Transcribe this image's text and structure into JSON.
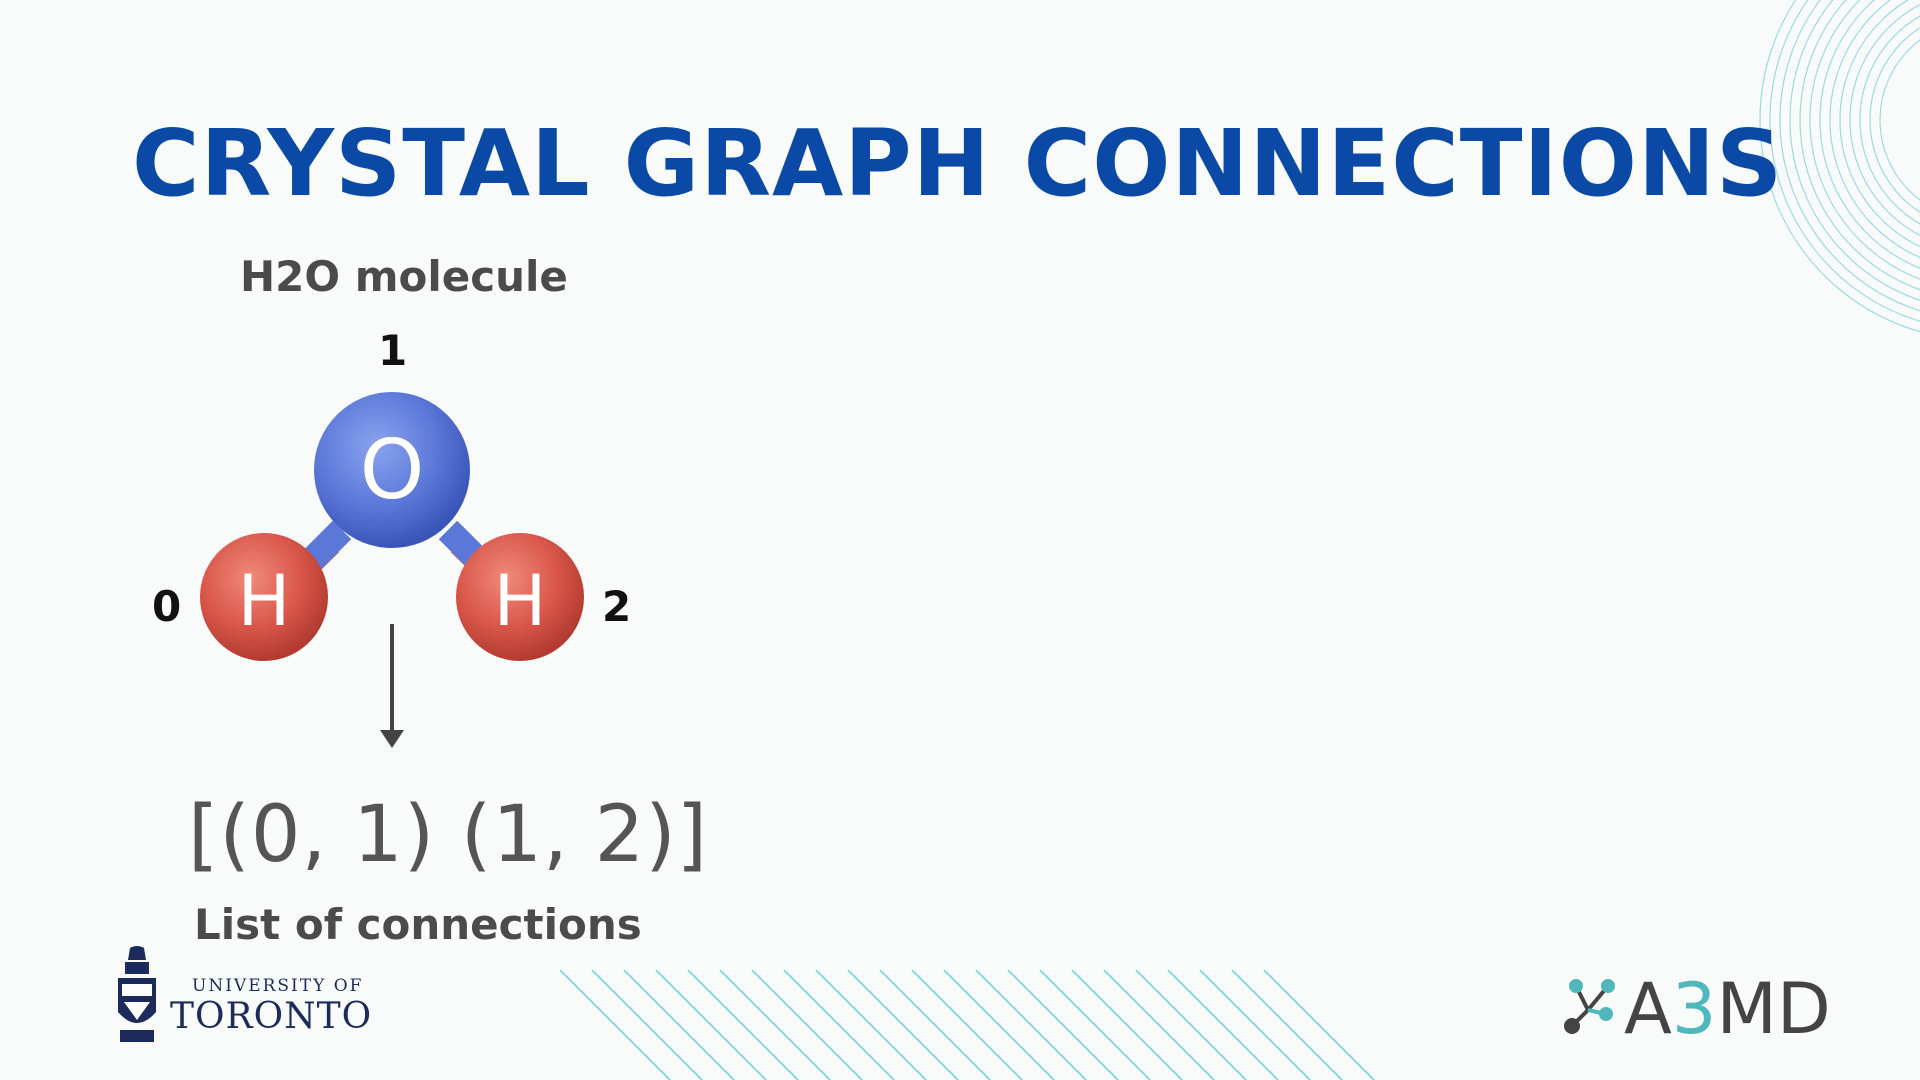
{
  "slide": {
    "title": "CRYSTAL GRAPH CONNECTIONS",
    "molecule_label": "H2O molecule",
    "atoms": [
      {
        "index": "0",
        "symbol": "H",
        "color": "#d9574a"
      },
      {
        "index": "1",
        "symbol": "O",
        "color": "#5b78d9"
      },
      {
        "index": "2",
        "symbol": "H",
        "color": "#d9574a"
      }
    ],
    "connections_text": "[(0, 1) (1, 2)]",
    "connections_label": "List of connections"
  },
  "logos": {
    "university": {
      "line1": "UNIVERSITY OF",
      "line2": "TORONTO"
    },
    "lab": {
      "prefix": "A",
      "middle": "3",
      "suffix": "MD"
    }
  },
  "colors": {
    "title": "#0a4aa6",
    "accent": "#4fb8bd",
    "text": "#4b4b4b"
  }
}
